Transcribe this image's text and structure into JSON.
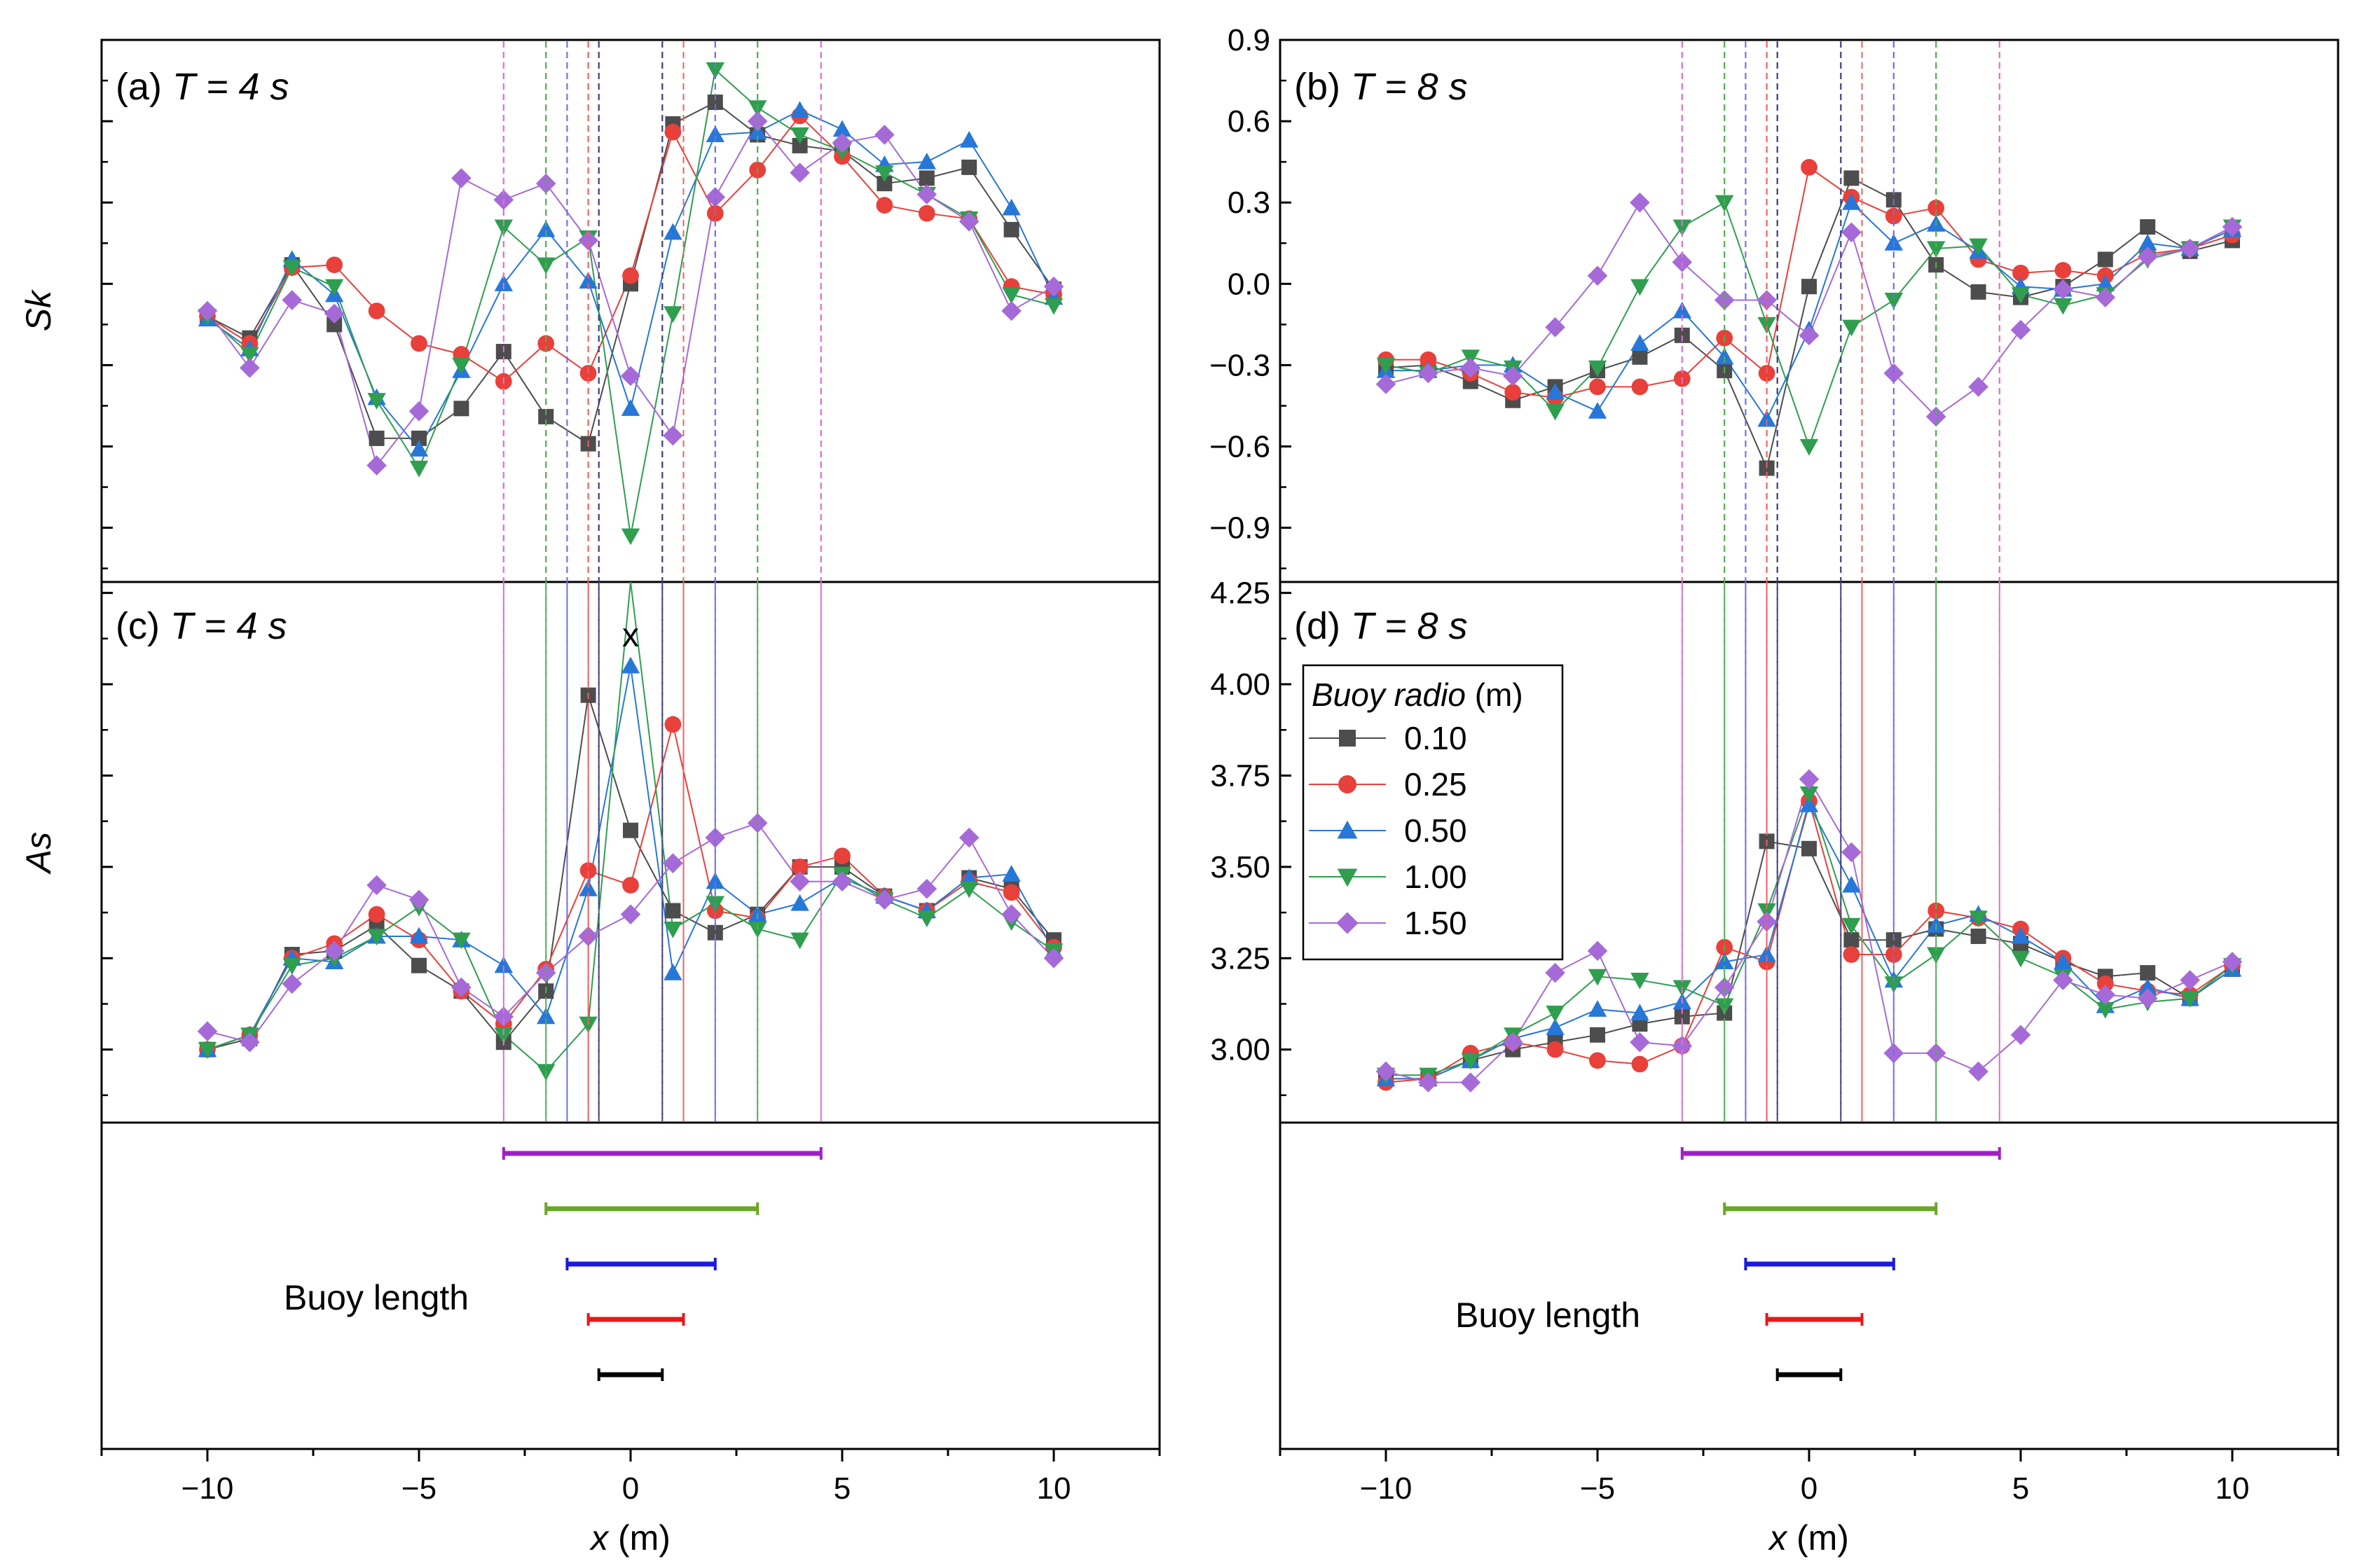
{
  "figure": {
    "ylabel_sk": "Sk",
    "ylabel_as": "As",
    "xlabel_main": "x",
    "xlabel_unit": "(m)",
    "buoy_length_label": "Buoy length"
  },
  "legend": {
    "title_italic": "Buoy radio",
    "title_unit": "(m)",
    "entries": [
      {
        "label": "0.10",
        "color": "#4d4d4d",
        "marker": "square"
      },
      {
        "label": "0.25",
        "color": "#e8403a",
        "marker": "circle"
      },
      {
        "label": "0.50",
        "color": "#2777d8",
        "marker": "triangle-up"
      },
      {
        "label": "1.00",
        "color": "#2f9e4f",
        "marker": "triangle-down"
      },
      {
        "label": "1.50",
        "color": "#a66ad8",
        "marker": "diamond"
      }
    ]
  },
  "chart_data": [
    {
      "id": "a",
      "type": "line",
      "panel_label_prefix": "(a) ",
      "panel_label_italic": "T = 4 s",
      "xlabel": "x (m)",
      "ylabel": "Sk",
      "xlim": [
        -12.5,
        12.5
      ],
      "ylim": [
        -1.1,
        0.9
      ],
      "yticks": [],
      "outlier_marker": null,
      "x": [
        -10,
        -9,
        -8,
        -7,
        -6,
        -5,
        -4,
        -3,
        -2,
        -1,
        0,
        1,
        2,
        3,
        4,
        5,
        6,
        7,
        8,
        9,
        10
      ],
      "series": [
        {
          "name": "0.10",
          "values": [
            -0.12,
            -0.2,
            0.07,
            -0.15,
            -0.57,
            -0.57,
            -0.46,
            -0.25,
            -0.49,
            -0.59,
            0.0,
            0.59,
            0.67,
            0.55,
            0.51,
            0.49,
            0.37,
            0.39,
            0.43,
            0.2,
            -0.02
          ]
        },
        {
          "name": "0.25",
          "values": [
            -0.12,
            -0.22,
            0.06,
            0.07,
            -0.1,
            -0.22,
            -0.26,
            -0.36,
            -0.22,
            -0.33,
            0.03,
            0.56,
            0.26,
            0.42,
            0.62,
            0.47,
            0.29,
            0.26,
            0.24,
            -0.01,
            -0.04
          ]
        },
        {
          "name": "0.50",
          "values": [
            -0.13,
            -0.24,
            0.09,
            -0.04,
            -0.42,
            -0.61,
            -0.32,
            0.0,
            0.2,
            0.01,
            -0.46,
            0.19,
            0.55,
            0.56,
            0.64,
            0.57,
            0.44,
            0.45,
            0.53,
            0.28,
            -0.05
          ]
        },
        {
          "name": "1.00",
          "values": [
            -0.12,
            -0.26,
            0.06,
            -0.01,
            -0.43,
            -0.68,
            -0.3,
            0.21,
            0.07,
            0.17,
            -0.93,
            -0.11,
            0.79,
            0.65,
            0.55,
            0.49,
            0.41,
            0.33,
            0.24,
            -0.04,
            -0.08
          ]
        },
        {
          "name": "1.50",
          "values": [
            -0.1,
            -0.31,
            -0.06,
            -0.11,
            -0.67,
            -0.47,
            0.39,
            0.31,
            0.37,
            0.16,
            -0.34,
            -0.56,
            0.32,
            0.6,
            0.41,
            0.52,
            0.55,
            0.33,
            0.23,
            -0.1,
            -0.01
          ]
        }
      ]
    },
    {
      "id": "b",
      "type": "line",
      "panel_label_prefix": "(b) ",
      "panel_label_italic": "T = 8 s",
      "xlabel": "x (m)",
      "ylabel": "Sk",
      "xlim": [
        -12.5,
        12.5
      ],
      "ylim": [
        -1.1,
        0.9
      ],
      "yticks": [
        "−0.9",
        "−0.6",
        "−0.3",
        "0.0",
        "0.3",
        "0.6",
        "0.9"
      ],
      "outlier_marker": null,
      "x": [
        -10,
        -9,
        -8,
        -7,
        -6,
        -5,
        -4,
        -3,
        -2,
        -1,
        0,
        1,
        2,
        3,
        4,
        5,
        6,
        7,
        8,
        9,
        10
      ],
      "series": [
        {
          "name": "0.10",
          "values": [
            -0.31,
            -0.3,
            -0.36,
            -0.43,
            -0.38,
            -0.32,
            -0.27,
            -0.19,
            -0.32,
            -0.68,
            -0.01,
            0.39,
            0.31,
            0.07,
            -0.03,
            -0.05,
            -0.01,
            0.09,
            0.21,
            0.12,
            0.16
          ]
        },
        {
          "name": "0.25",
          "values": [
            -0.28,
            -0.28,
            -0.33,
            -0.4,
            -0.42,
            -0.38,
            -0.38,
            -0.35,
            -0.2,
            -0.33,
            0.43,
            0.32,
            0.25,
            0.28,
            0.09,
            0.04,
            0.05,
            0.03,
            0.11,
            0.13,
            0.18
          ]
        },
        {
          "name": "0.50",
          "values": [
            -0.32,
            -0.32,
            -0.3,
            -0.3,
            -0.4,
            -0.47,
            -0.22,
            -0.1,
            -0.27,
            -0.5,
            -0.17,
            0.3,
            0.15,
            0.22,
            0.12,
            -0.01,
            -0.02,
            0.0,
            0.15,
            0.13,
            0.2
          ]
        },
        {
          "name": "1.00",
          "values": [
            -0.3,
            -0.33,
            -0.27,
            -0.31,
            -0.47,
            -0.31,
            -0.01,
            0.21,
            0.3,
            -0.15,
            -0.6,
            -0.16,
            -0.06,
            0.13,
            0.14,
            -0.04,
            -0.08,
            -0.04,
            0.09,
            0.13,
            0.21
          ]
        },
        {
          "name": "1.50",
          "values": [
            -0.37,
            -0.33,
            -0.31,
            -0.34,
            -0.16,
            0.03,
            0.3,
            0.08,
            -0.06,
            -0.06,
            -0.19,
            0.19,
            -0.33,
            -0.49,
            -0.38,
            -0.17,
            -0.02,
            -0.05,
            0.1,
            0.13,
            0.21
          ]
        }
      ]
    },
    {
      "id": "c",
      "type": "line",
      "panel_label_prefix": "(c) ",
      "panel_label_italic": "T = 4 s",
      "xlabel": "x (m)",
      "ylabel": "As",
      "xlim": [
        -12.5,
        12.5
      ],
      "ylim": [
        2.8,
        4.28
      ],
      "yticks": [],
      "outlier_marker": {
        "text": "x",
        "x": 0,
        "y": 4.13
      },
      "x": [
        -10,
        -9,
        -8,
        -7,
        -6,
        -5,
        -4,
        -3,
        -2,
        -1,
        0,
        1,
        2,
        3,
        4,
        5,
        6,
        7,
        8,
        9,
        10
      ],
      "series": [
        {
          "name": "0.10",
          "values": [
            3.0,
            3.03,
            3.26,
            3.27,
            3.34,
            3.23,
            3.16,
            3.02,
            3.16,
            3.97,
            3.6,
            3.38,
            3.32,
            3.37,
            3.5,
            3.5,
            3.42,
            3.38,
            3.47,
            3.44,
            3.3
          ]
        },
        {
          "name": "0.25",
          "values": [
            3.0,
            3.04,
            3.25,
            3.29,
            3.37,
            3.3,
            3.16,
            3.07,
            3.22,
            3.49,
            3.45,
            3.89,
            3.38,
            3.36,
            3.5,
            3.53,
            3.42,
            3.38,
            3.46,
            3.43,
            3.28
          ]
        },
        {
          "name": "0.50",
          "values": [
            3.0,
            3.04,
            3.25,
            3.24,
            3.31,
            3.31,
            3.3,
            3.23,
            3.09,
            3.44,
            4.05,
            3.21,
            3.46,
            3.37,
            3.4,
            3.47,
            3.42,
            3.38,
            3.47,
            3.48,
            3.27
          ]
        },
        {
          "name": "1.00",
          "values": [
            3.0,
            3.04,
            3.23,
            3.25,
            3.31,
            3.39,
            3.3,
            3.04,
            2.94,
            3.07,
            4.29,
            3.33,
            3.4,
            3.33,
            3.3,
            3.48,
            3.41,
            3.36,
            3.44,
            3.35,
            3.27
          ]
        },
        {
          "name": "1.50",
          "values": [
            3.05,
            3.02,
            3.18,
            3.27,
            3.45,
            3.41,
            3.17,
            3.09,
            3.21,
            3.31,
            3.37,
            3.51,
            3.58,
            3.62,
            3.46,
            3.46,
            3.41,
            3.44,
            3.58,
            3.37,
            3.25
          ]
        }
      ]
    },
    {
      "id": "d",
      "type": "line",
      "panel_label_prefix": "(d) ",
      "panel_label_italic": "T = 8 s",
      "xlabel": "x (m)",
      "ylabel": "As",
      "xlim": [
        -12.5,
        12.5
      ],
      "ylim": [
        2.8,
        4.28
      ],
      "yticks": [
        "3.00",
        "3.25",
        "3.50",
        "3.75",
        "4.00",
        "4.25"
      ],
      "outlier_marker": null,
      "x": [
        -10,
        -9,
        -8,
        -7,
        -6,
        -5,
        -4,
        -3,
        -2,
        -1,
        0,
        1,
        2,
        3,
        4,
        5,
        6,
        7,
        8,
        9,
        10
      ],
      "series": [
        {
          "name": "0.10",
          "values": [
            2.92,
            2.92,
            2.97,
            3.0,
            3.02,
            3.04,
            3.07,
            3.09,
            3.1,
            3.57,
            3.55,
            3.3,
            3.3,
            3.33,
            3.31,
            3.29,
            3.24,
            3.2,
            3.21,
            3.14,
            3.22
          ]
        },
        {
          "name": "0.25",
          "values": [
            2.91,
            2.92,
            2.99,
            3.02,
            3.0,
            2.97,
            2.96,
            3.01,
            3.28,
            3.24,
            3.68,
            3.26,
            3.26,
            3.38,
            3.36,
            3.33,
            3.25,
            3.18,
            3.16,
            3.15,
            3.23
          ]
        },
        {
          "name": "0.50",
          "values": [
            2.92,
            2.92,
            2.97,
            3.03,
            3.06,
            3.11,
            3.1,
            3.13,
            3.24,
            3.26,
            3.67,
            3.45,
            3.19,
            3.34,
            3.37,
            3.31,
            3.24,
            3.12,
            3.17,
            3.14,
            3.22
          ]
        },
        {
          "name": "1.00",
          "values": [
            2.93,
            2.93,
            2.97,
            3.04,
            3.1,
            3.2,
            3.19,
            3.17,
            3.12,
            3.38,
            3.7,
            3.34,
            3.18,
            3.26,
            3.36,
            3.25,
            3.2,
            3.11,
            3.13,
            3.14,
            3.23
          ]
        },
        {
          "name": "1.50",
          "values": [
            2.94,
            2.91,
            2.91,
            3.02,
            3.21,
            3.27,
            3.02,
            3.01,
            3.17,
            3.35,
            3.74,
            3.54,
            2.99,
            2.99,
            2.94,
            3.04,
            3.19,
            3.15,
            3.14,
            3.19,
            3.24
          ]
        }
      ]
    }
  ],
  "buoy_spans": [
    {
      "radius": "1.50",
      "x_start": -3.0,
      "x_end": 4.5,
      "color": "#a020c8",
      "line_color": "#e070d0"
    },
    {
      "radius": "1.00",
      "x_start": -2.0,
      "x_end": 3.0,
      "color": "#6aa628",
      "line_color": "#50b050"
    },
    {
      "radius": "0.50",
      "x_start": -1.5,
      "x_end": 2.0,
      "color": "#1a1ae0",
      "line_color": "#7070e8"
    },
    {
      "radius": "0.25",
      "x_start": -1.0,
      "x_end": 1.25,
      "color": "#e81818",
      "line_color": "#f06060"
    },
    {
      "radius": "0.10",
      "x_start": -0.75,
      "x_end": 0.75,
      "color": "#000000",
      "line_color": "#404080"
    }
  ],
  "x_axis": {
    "ticks": [
      -10,
      -5,
      0,
      5,
      10
    ],
    "tick_labels": [
      "−10",
      "−5",
      "0",
      "5",
      "10"
    ]
  }
}
